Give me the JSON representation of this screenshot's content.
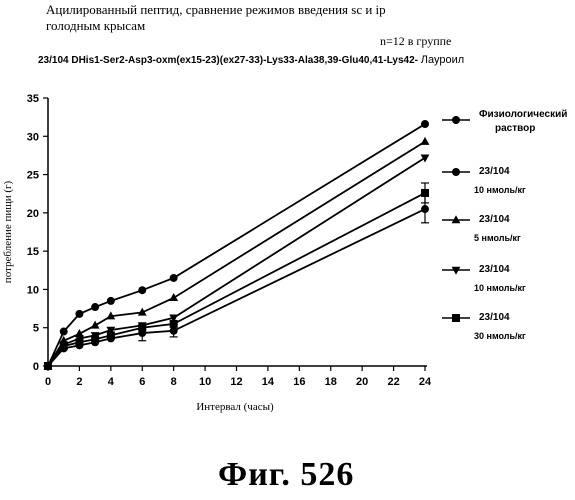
{
  "header": {
    "title_line1": "Ацилированный пептид, сравнение режимов введения sc и ip",
    "title_line2": "голодным крысам",
    "group_note": "n=12 в группе",
    "compound": "23/104 DHis1-Ser2-Asp3-oxm(ex15-23)(ex27-33)-Lys33-Ala38,39-Glu40,41-Lys42-",
    "compound_suffix": "Лауроил"
  },
  "figure_caption": "Фиг.  526",
  "chart_data": {
    "type": "line",
    "title": "",
    "xlabel": "Интервал (часы)",
    "ylabel": "потребление пищи (г)",
    "x_ticks": [
      "0",
      "2",
      "4",
      "6",
      "8",
      "10",
      "12",
      "14",
      "16",
      "18",
      "20",
      "22",
      "24"
    ],
    "y_ticks": [
      "0",
      "5",
      "10",
      "15",
      "20",
      "25",
      "30",
      "35"
    ],
    "xlim": [
      0,
      24
    ],
    "ylim": [
      0,
      35
    ],
    "grid": false,
    "legend_position": "right",
    "series": [
      {
        "name": "Физиологический раствор",
        "legend_lines": [
          "Физиологический",
          "раствор"
        ],
        "marker": "circle",
        "x": [
          0,
          1,
          2,
          3,
          4,
          6,
          8,
          24
        ],
        "y": [
          0,
          4.5,
          6.8,
          7.7,
          8.5,
          9.9,
          11.5,
          31.6
        ],
        "err": [
          0,
          0,
          0,
          0,
          0,
          0,
          0,
          0
        ]
      },
      {
        "name": "23/104 10 нмоль/кг",
        "legend_lines": [
          "23/104",
          "10 нмоль/кг"
        ],
        "marker": "circle",
        "x": [
          0,
          1,
          2,
          3,
          4,
          6,
          8,
          24
        ],
        "y": [
          0,
          2.3,
          2.7,
          3.1,
          3.6,
          4.3,
          4.6,
          20.5
        ],
        "err": [
          0,
          0,
          0,
          0,
          0,
          1.0,
          0.8,
          1.8
        ]
      },
      {
        "name": "23/104 5 нмоль/кг",
        "legend_lines": [
          "23/104",
          "5 нмоль/кг"
        ],
        "marker": "triangle-up",
        "x": [
          0,
          1,
          2,
          3,
          4,
          6,
          8,
          24
        ],
        "y": [
          0,
          3.3,
          4.2,
          5.3,
          6.5,
          7.0,
          8.9,
          29.3
        ],
        "err": [
          0,
          0,
          0,
          0,
          0,
          0,
          0,
          0
        ]
      },
      {
        "name": "23/104 10 нмоль/кг",
        "legend_lines": [
          "23/104",
          "10 нмоль/кг"
        ],
        "marker": "triangle-down",
        "x": [
          0,
          1,
          2,
          3,
          4,
          6,
          8,
          24
        ],
        "y": [
          0,
          2.8,
          3.6,
          4.0,
          4.7,
          5.3,
          6.3,
          27.2
        ],
        "err": [
          0,
          0,
          0,
          0,
          0,
          0,
          0,
          0
        ]
      },
      {
        "name": "23/104 30 нмоль/кг",
        "legend_lines": [
          "23/104",
          "30 нмоль/кг"
        ],
        "marker": "square",
        "x": [
          0,
          1,
          2,
          3,
          4,
          6,
          8,
          24
        ],
        "y": [
          0,
          2.6,
          3.1,
          3.5,
          4.0,
          5.0,
          5.5,
          22.6
        ],
        "err": [
          0,
          0,
          0,
          0,
          0,
          0,
          0,
          1.3
        ]
      }
    ]
  }
}
